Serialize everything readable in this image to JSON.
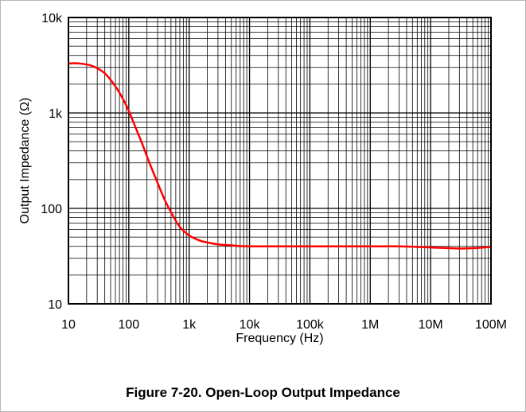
{
  "caption": "Figure 7-20. Open-Loop Output Impedance",
  "chart_data": {
    "type": "line",
    "title": "",
    "xlabel": "Frequency (Hz)",
    "ylabel": "Output Impedance (Ω)",
    "x_scale": "log",
    "y_scale": "log",
    "xlim": [
      10,
      100000000
    ],
    "ylim": [
      10,
      10000
    ],
    "grid": true,
    "x_ticks": [
      {
        "value": 10,
        "label": "10"
      },
      {
        "value": 100,
        "label": "100"
      },
      {
        "value": 1000,
        "label": "1k"
      },
      {
        "value": 10000,
        "label": "10k"
      },
      {
        "value": 100000,
        "label": "100k"
      },
      {
        "value": 1000000,
        "label": "1M"
      },
      {
        "value": 10000000,
        "label": "10M"
      },
      {
        "value": 100000000,
        "label": "100M"
      }
    ],
    "y_ticks": [
      {
        "value": 10,
        "label": "10"
      },
      {
        "value": 100,
        "label": "100"
      },
      {
        "value": 1000,
        "label": "1k"
      },
      {
        "value": 10000,
        "label": "10k"
      }
    ],
    "series": [
      {
        "color": "#ff0000",
        "x": [
          10,
          15,
          25,
          40,
          60,
          80,
          100,
          130,
          170,
          220,
          300,
          400,
          550,
          700,
          1000,
          1500,
          2000,
          3000,
          5000,
          10000,
          100000,
          1000000,
          3000000,
          10000000,
          30000000,
          60000000,
          100000000
        ],
        "y": [
          3300,
          3300,
          3100,
          2600,
          1900,
          1400,
          1050,
          700,
          460,
          300,
          185,
          120,
          82,
          64,
          52,
          46,
          44,
          42,
          41,
          40,
          40,
          40,
          40,
          39,
          38,
          38.5,
          39.5
        ]
      }
    ]
  }
}
